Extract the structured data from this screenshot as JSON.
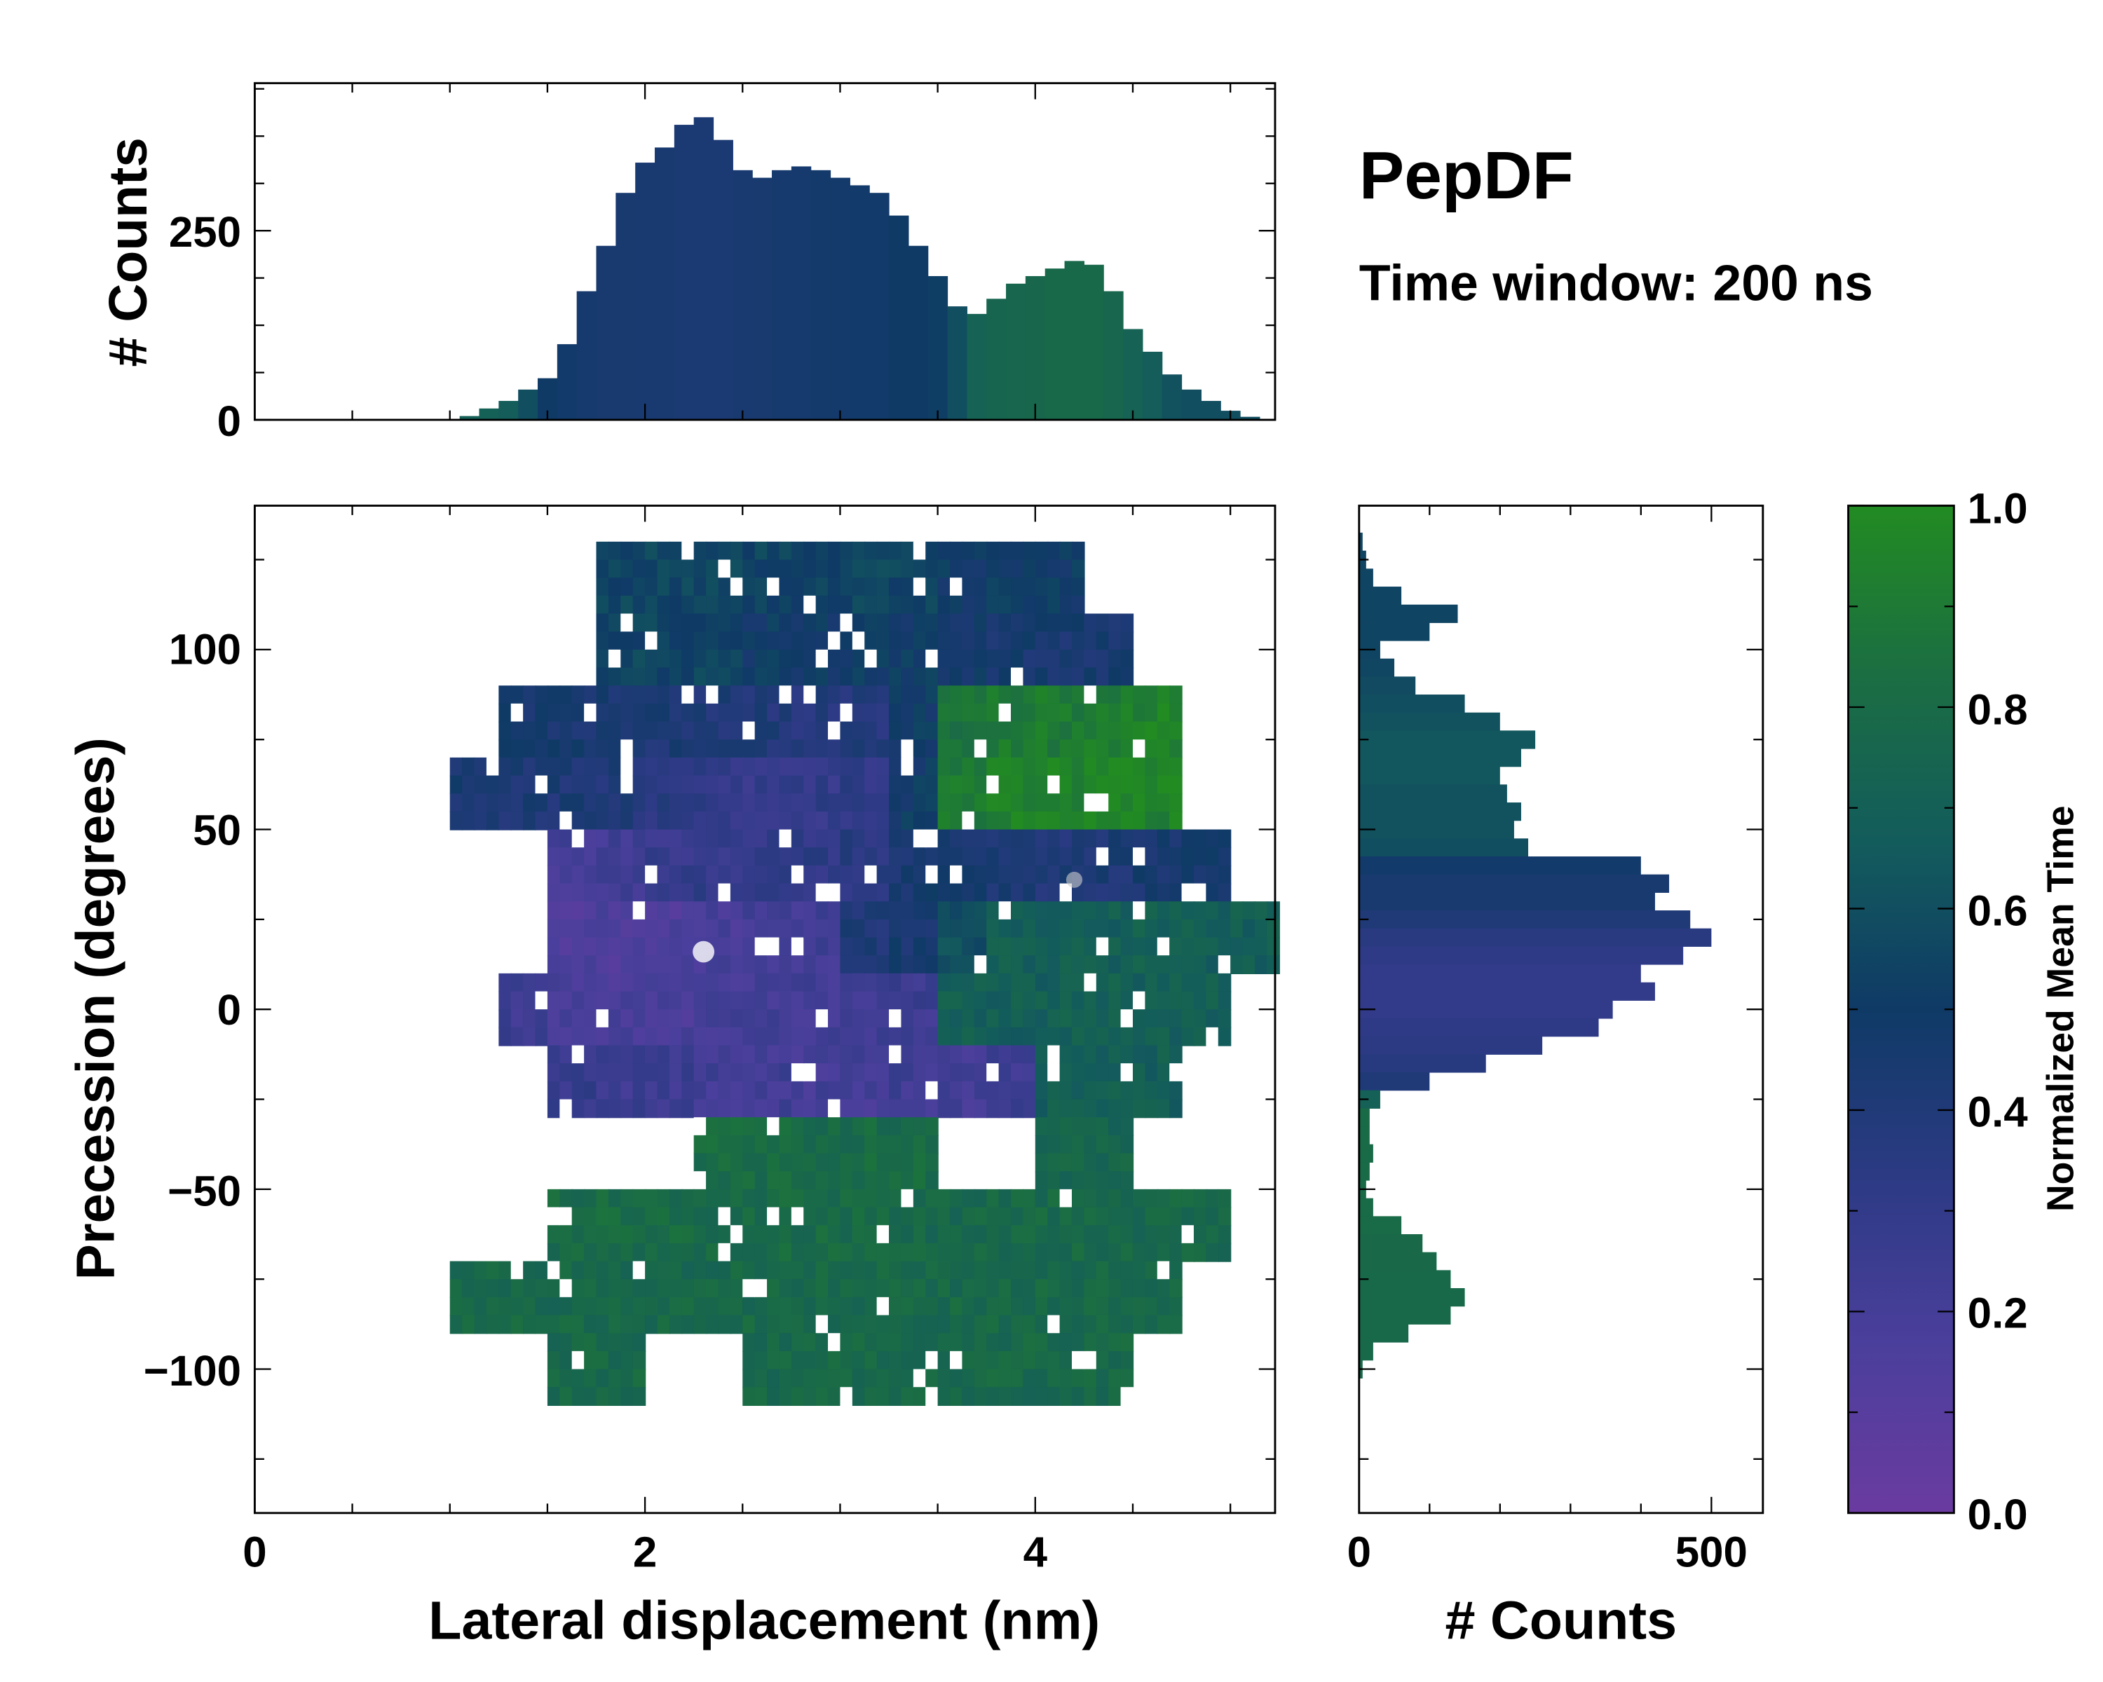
{
  "chart_data": {
    "type": "heatmap",
    "title": "PepDF",
    "subtitle": "Time window: 200 ns",
    "xlabel": "Lateral displacement (nm)",
    "ylabel": "Precession (degrees)",
    "xlim": [
      0,
      5.22
    ],
    "ylim": [
      -140,
      140
    ],
    "xticks": [
      "0",
      "2",
      "4"
    ],
    "yticks": [
      "−100",
      "−50",
      "0",
      "50",
      "100"
    ],
    "colorbar": {
      "label": "Normalized Mean Time",
      "range": [
        0,
        1
      ],
      "ticks": [
        "0.0",
        "0.2",
        "0.4",
        "0.6",
        "0.8",
        "1.0"
      ],
      "colors": [
        "#6a3ba0",
        "#4b3f9c",
        "#2c3a84",
        "#0f3a66",
        "#135c5c",
        "#1b6e42",
        "#228b22"
      ]
    },
    "heatmap": {
      "x_start": 1.0,
      "x_step": 0.25,
      "y_top": 130,
      "y_step": 20,
      "values": [
        [
          null,
          null,
          null,
          0.55,
          0.55,
          0.55,
          0.55,
          0.55,
          0.55,
          0.55,
          0.5,
          0.5,
          0.5,
          null,
          null,
          null,
          null
        ],
        [
          null,
          null,
          null,
          0.55,
          0.55,
          0.55,
          0.5,
          0.5,
          0.5,
          0.5,
          0.48,
          0.45,
          0.45,
          0.45,
          null,
          null,
          null
        ],
        [
          null,
          0.45,
          0.45,
          0.45,
          0.42,
          0.4,
          0.4,
          0.38,
          0.38,
          0.5,
          0.85,
          0.9,
          0.9,
          0.92,
          0.95,
          null,
          null
        ],
        [
          0.45,
          0.42,
          0.42,
          0.4,
          0.35,
          0.3,
          0.28,
          0.3,
          0.32,
          0.5,
          0.9,
          0.95,
          0.95,
          0.95,
          0.95,
          null,
          null
        ],
        [
          null,
          null,
          0.2,
          0.22,
          0.28,
          0.3,
          0.3,
          0.32,
          0.35,
          0.45,
          0.45,
          0.42,
          0.4,
          0.42,
          0.45,
          0.48,
          null
        ],
        [
          null,
          null,
          0.15,
          0.15,
          0.15,
          0.18,
          0.2,
          0.22,
          0.4,
          0.45,
          0.6,
          0.7,
          0.7,
          0.7,
          0.7,
          0.7,
          0.7
        ],
        [
          null,
          0.25,
          0.2,
          0.18,
          0.18,
          0.2,
          0.2,
          0.22,
          0.22,
          0.25,
          0.7,
          0.7,
          0.7,
          0.72,
          0.7,
          0.7,
          null
        ],
        [
          null,
          null,
          0.28,
          0.25,
          0.25,
          0.22,
          0.22,
          0.2,
          0.2,
          0.22,
          0.2,
          0.25,
          0.7,
          0.7,
          0.7,
          null,
          null
        ],
        [
          null,
          null,
          null,
          null,
          null,
          0.8,
          0.8,
          0.8,
          0.8,
          0.8,
          null,
          null,
          0.75,
          0.75,
          null,
          null,
          null
        ],
        [
          null,
          null,
          0.8,
          0.8,
          0.8,
          0.8,
          0.8,
          0.8,
          0.8,
          0.78,
          0.78,
          0.78,
          0.78,
          0.78,
          0.78,
          0.78,
          null
        ],
        [
          0.78,
          0.78,
          0.78,
          0.78,
          0.78,
          0.78,
          0.78,
          0.78,
          0.78,
          0.78,
          0.78,
          0.78,
          0.78,
          0.78,
          0.78,
          null,
          null
        ],
        [
          null,
          null,
          0.78,
          0.78,
          null,
          null,
          0.78,
          0.78,
          0.78,
          0.78,
          0.78,
          0.78,
          0.78,
          0.78,
          null,
          null,
          null
        ]
      ]
    },
    "top_histogram": {
      "ylabel": "# Counts",
      "yticks": [
        "0",
        "250"
      ],
      "bin_width": 0.1,
      "x": [
        1.1,
        1.2,
        1.3,
        1.4,
        1.5,
        1.6,
        1.7,
        1.8,
        1.9,
        2.0,
        2.1,
        2.2,
        2.3,
        2.4,
        2.5,
        2.6,
        2.7,
        2.8,
        2.9,
        3.0,
        3.1,
        3.2,
        3.3,
        3.4,
        3.5,
        3.6,
        3.7,
        3.8,
        3.9,
        4.0,
        4.1,
        4.2,
        4.3,
        4.4,
        4.5,
        4.6,
        4.7,
        4.8,
        4.9,
        5.0,
        5.1
      ],
      "counts": [
        5,
        15,
        25,
        40,
        55,
        100,
        170,
        230,
        300,
        340,
        360,
        390,
        400,
        370,
        330,
        320,
        330,
        335,
        330,
        320,
        310,
        300,
        270,
        230,
        190,
        150,
        140,
        160,
        180,
        190,
        200,
        210,
        205,
        170,
        120,
        90,
        60,
        40,
        25,
        12,
        4
      ],
      "mean_time": [
        0.7,
        0.7,
        0.68,
        0.6,
        0.5,
        0.48,
        0.46,
        0.45,
        0.45,
        0.44,
        0.44,
        0.43,
        0.43,
        0.43,
        0.44,
        0.45,
        0.46,
        0.46,
        0.47,
        0.47,
        0.48,
        0.48,
        0.5,
        0.5,
        0.52,
        0.6,
        0.72,
        0.75,
        0.76,
        0.77,
        0.78,
        0.78,
        0.78,
        0.76,
        0.72,
        0.68,
        0.62,
        0.6,
        0.6,
        0.6,
        0.6
      ]
    },
    "right_histogram": {
      "xlabel": "# Counts",
      "xticks": [
        "0",
        "500"
      ],
      "bin_width": 5,
      "y": [
        130,
        125,
        120,
        115,
        110,
        105,
        100,
        95,
        90,
        85,
        80,
        75,
        70,
        65,
        60,
        55,
        50,
        45,
        40,
        35,
        30,
        25,
        20,
        15,
        10,
        5,
        0,
        -5,
        -10,
        -15,
        -20,
        -25,
        -30,
        -35,
        -40,
        -45,
        -50,
        -55,
        -60,
        -65,
        -70,
        -75,
        -80,
        -85,
        -90,
        -95,
        -100
      ],
      "counts": [
        5,
        10,
        20,
        60,
        140,
        100,
        30,
        50,
        80,
        150,
        200,
        250,
        230,
        200,
        210,
        230,
        220,
        240,
        400,
        440,
        420,
        470,
        500,
        460,
        400,
        420,
        360,
        340,
        260,
        180,
        100,
        30,
        15,
        15,
        20,
        15,
        10,
        20,
        60,
        90,
        110,
        130,
        150,
        130,
        70,
        20,
        5
      ],
      "mean_time": [
        0.55,
        0.55,
        0.55,
        0.55,
        0.55,
        0.55,
        0.55,
        0.56,
        0.58,
        0.6,
        0.62,
        0.64,
        0.64,
        0.64,
        0.62,
        0.62,
        0.62,
        0.6,
        0.48,
        0.45,
        0.45,
        0.4,
        0.35,
        0.32,
        0.3,
        0.3,
        0.3,
        0.32,
        0.34,
        0.36,
        0.4,
        0.7,
        0.8,
        0.8,
        0.8,
        0.8,
        0.8,
        0.8,
        0.8,
        0.79,
        0.79,
        0.78,
        0.78,
        0.78,
        0.78,
        0.78,
        0.78
      ]
    }
  }
}
